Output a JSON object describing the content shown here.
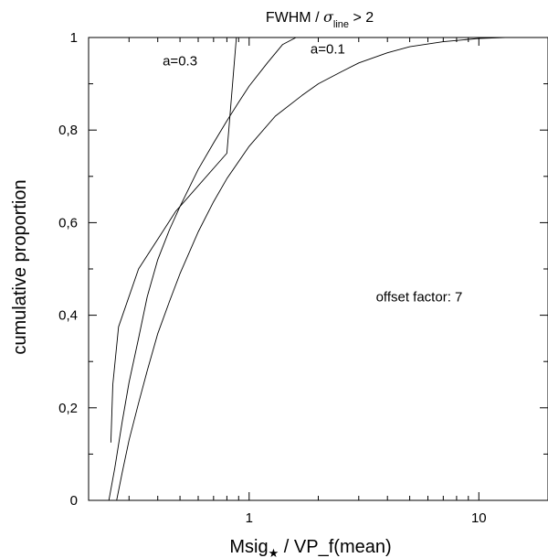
{
  "chart_data": {
    "type": "line",
    "title": {
      "prefix": "FWHM / ",
      "sigma": "σ",
      "subscript": "line",
      "suffix": " > 2"
    },
    "xlabel": {
      "main": "Msig",
      "subscript": "★",
      "rest": " / VP_f(mean)"
    },
    "ylabel": "cumulative proportion",
    "x_scale": "log",
    "xlim": [
      0.2,
      20
    ],
    "ylim": [
      0,
      1
    ],
    "x_tick_labels": [
      {
        "value": 1,
        "label": "1"
      },
      {
        "value": 10,
        "label": "10"
      }
    ],
    "x_minor_ticks": [
      0.2,
      0.3,
      0.4,
      0.5,
      0.6,
      0.7,
      0.8,
      0.9,
      2,
      3,
      4,
      5,
      6,
      7,
      8,
      9,
      20
    ],
    "y_tick_labels": [
      {
        "value": 0,
        "label": "0"
      },
      {
        "value": 0.2,
        "label": "0,2"
      },
      {
        "value": 0.4,
        "label": "0,4"
      },
      {
        "value": 0.6,
        "label": "0,6"
      },
      {
        "value": 0.8,
        "label": "0,8"
      },
      {
        "value": 1,
        "label": "1"
      }
    ],
    "y_minor_ticks": [
      0.1,
      0.3,
      0.5,
      0.7,
      0.9
    ],
    "grid": false,
    "series": [
      {
        "name": "a=0.3",
        "x": [
          0.25,
          0.255,
          0.27,
          0.33,
          0.48,
          0.8,
          0.88
        ],
        "y": [
          0.125,
          0.25,
          0.375,
          0.5,
          0.625,
          0.75,
          1.0
        ]
      },
      {
        "name": "a=0.3",
        "x": [
          0.245,
          0.26,
          0.28,
          0.3,
          0.33,
          0.36,
          0.4,
          0.45,
          0.5,
          0.6,
          0.7,
          0.8,
          0.9,
          1.0,
          1.2,
          1.4,
          1.6
        ],
        "y": [
          0.0,
          0.07,
          0.17,
          0.255,
          0.35,
          0.44,
          0.52,
          0.585,
          0.635,
          0.715,
          0.772,
          0.82,
          0.86,
          0.895,
          0.945,
          0.985,
          1.0
        ]
      },
      {
        "name": "a=0.1",
        "x": [
          0.265,
          0.28,
          0.3,
          0.33,
          0.36,
          0.4,
          0.45,
          0.5,
          0.6,
          0.7,
          0.8,
          1.0,
          1.3,
          1.7,
          2.0,
          2.5,
          3.0,
          4.0,
          5.0,
          7.0,
          10.0,
          13.0
        ],
        "y": [
          0.0,
          0.06,
          0.13,
          0.21,
          0.28,
          0.36,
          0.43,
          0.49,
          0.58,
          0.645,
          0.695,
          0.765,
          0.83,
          0.875,
          0.9,
          0.925,
          0.945,
          0.967,
          0.98,
          0.991,
          0.998,
          1.0
        ]
      }
    ],
    "annotations": [
      {
        "text": "a=0.3",
        "x": 0.5,
        "y": 0.94
      },
      {
        "text": "a=0.1",
        "x": 2.2,
        "y": 0.965
      },
      {
        "text": "offset factor: 7",
        "x": 5.5,
        "y": 0.43
      }
    ]
  }
}
